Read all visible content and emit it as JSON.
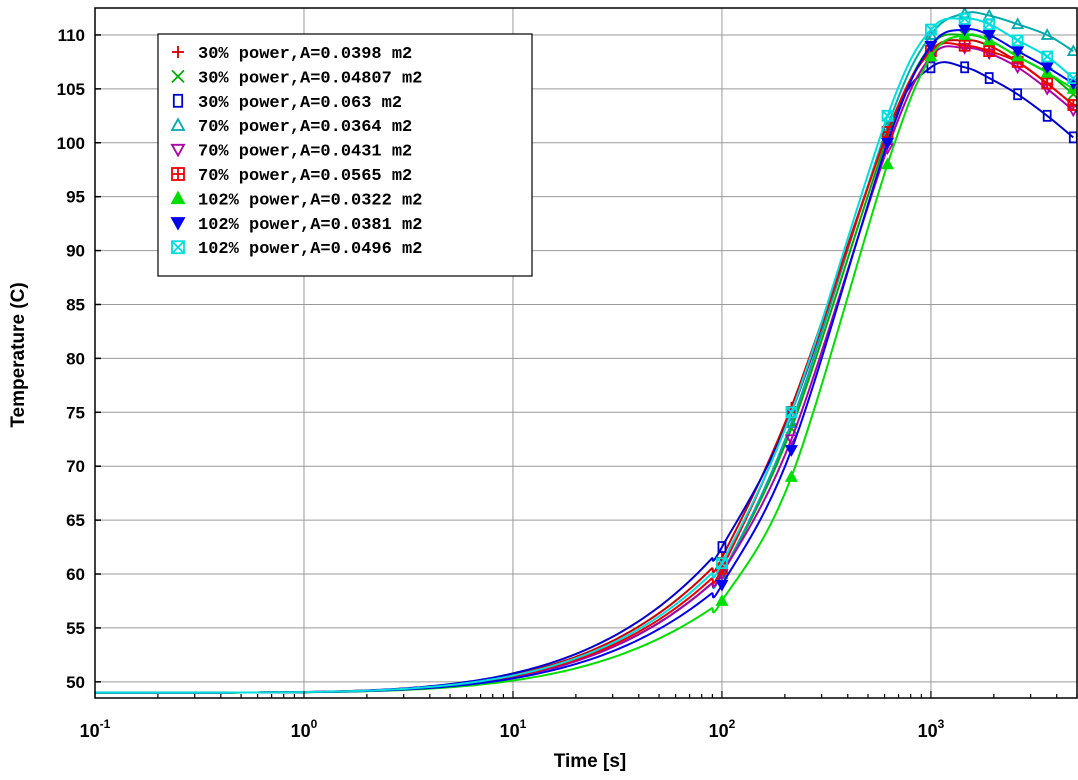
{
  "chart_data": {
    "type": "line",
    "title": "",
    "xlabel": "Time [s]",
    "ylabel": "Temperature (C)",
    "xscale": "log",
    "xlim": [
      0.1,
      5000
    ],
    "ylim": [
      48.5,
      112.5
    ],
    "grid": true,
    "legend_position": "top-left",
    "x_ticks": [
      {
        "base": "10",
        "exp": "-1"
      },
      {
        "base": "10",
        "exp": "0"
      },
      {
        "base": "10",
        "exp": "1"
      },
      {
        "base": "10",
        "exp": "2"
      },
      {
        "base": "10",
        "exp": "3"
      }
    ],
    "x_tick_values": [
      0.1,
      1,
      10,
      100,
      1000
    ],
    "y_ticks": [
      "50",
      "55",
      "60",
      "65",
      "70",
      "75",
      "80",
      "85",
      "90",
      "95",
      "100",
      "105",
      "110"
    ],
    "y_tick_values": [
      50,
      55,
      60,
      65,
      70,
      75,
      80,
      85,
      90,
      95,
      100,
      105,
      110
    ],
    "marker_x": [
      100,
      215,
      620,
      1000,
      1450,
      1900,
      2600,
      3600,
      4800
    ],
    "series": [
      {
        "name": "30% power,A=0.0398 m2",
        "color": "#cc0000",
        "marker": "plus",
        "values": [
          61.5,
          75.5,
          101.0,
          108.5,
          109.5,
          109.0,
          107.5,
          105.5,
          103.5
        ]
      },
      {
        "name": "30% power,A=0.04807 m2",
        "color": "#00aa00",
        "marker": "x",
        "values": [
          60.0,
          73.5,
          100.5,
          109.0,
          110.0,
          109.5,
          108.0,
          106.5,
          104.5
        ]
      },
      {
        "name": "30% power,A=0.063 m2",
        "color": "#0000cc",
        "marker": "square",
        "values": [
          62.5,
          75.0,
          101.0,
          107.0,
          107.0,
          106.0,
          104.5,
          102.5,
          100.5
        ]
      },
      {
        "name": "70% power,A=0.0364 m2",
        "color": "#00aaaa",
        "marker": "triangle-up",
        "values": [
          60.0,
          74.0,
          101.5,
          110.0,
          112.0,
          111.8,
          111.0,
          110.0,
          108.5
        ]
      },
      {
        "name": "70% power,A=0.0431 m2",
        "color": "#aa00aa",
        "marker": "triangle-down",
        "values": [
          60.0,
          72.5,
          99.5,
          108.0,
          108.8,
          108.3,
          107.0,
          105.0,
          103.0
        ]
      },
      {
        "name": "70% power,A=0.0565 m2",
        "color": "#ee0000",
        "marker": "square-plus",
        "values": [
          60.5,
          75.0,
          101.0,
          108.5,
          109.0,
          108.5,
          107.5,
          105.5,
          103.5
        ]
      },
      {
        "name": "102% power,A=0.0322 m2",
        "color": "#00dd00",
        "marker": "triangle-filled",
        "values": [
          57.5,
          69.0,
          98.0,
          108.0,
          110.0,
          109.5,
          108.0,
          106.5,
          105.0
        ]
      },
      {
        "name": "102% power,A=0.0381 m2",
        "color": "#0000ee",
        "marker": "triangle-down-filled",
        "values": [
          59.0,
          71.5,
          100.0,
          109.0,
          110.5,
          110.0,
          108.5,
          107.0,
          105.5
        ]
      },
      {
        "name": "102% power,A=0.0496 m2",
        "color": "#00dddd",
        "marker": "square-x",
        "values": [
          61.0,
          75.0,
          102.5,
          110.5,
          111.5,
          111.0,
          109.5,
          108.0,
          106.0
        ]
      }
    ]
  }
}
